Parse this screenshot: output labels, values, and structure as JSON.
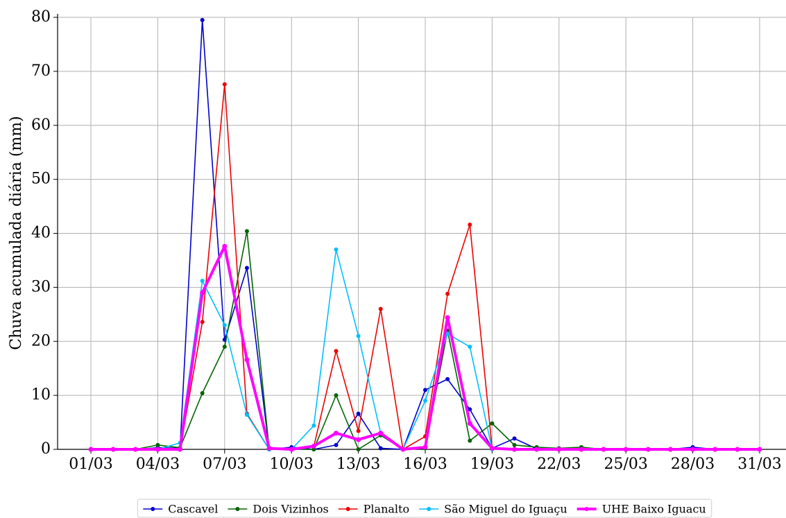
{
  "chart_data": {
    "type": "line",
    "ylabel": "Chuva acumulada diária (mm)",
    "categories": [
      "01/03",
      null,
      null,
      "04/03",
      null,
      null,
      "07/03",
      null,
      null,
      "10/03",
      null,
      null,
      "13/03",
      null,
      null,
      "16/03",
      null,
      null,
      "19/03",
      null,
      null,
      "22/03",
      null,
      null,
      "25/03",
      null,
      null,
      "28/03",
      null,
      null,
      "31/03"
    ],
    "series": [
      {
        "name": "Cascavel",
        "color": "#0000cd",
        "values": [
          0,
          0,
          0,
          0.3,
          0.2,
          79.5,
          20.3,
          33.6,
          0,
          0.4,
          0,
          0.8,
          6.6,
          0.2,
          0,
          11,
          13,
          7.4,
          0.2,
          2,
          0.1,
          0.1,
          0.1,
          0,
          0,
          0,
          0,
          0.4,
          0,
          0,
          0
        ]
      },
      {
        "name": "Dois Vizinhos",
        "color": "#006400",
        "values": [
          0,
          0,
          0,
          0.8,
          0.3,
          10.4,
          19,
          40.4,
          0,
          0,
          0,
          10,
          0,
          2.6,
          0,
          0.2,
          22,
          1.6,
          4.8,
          0.8,
          0.4,
          0.2,
          0.4,
          0,
          0,
          0,
          0,
          0,
          0,
          0,
          0
        ]
      },
      {
        "name": "Planalto",
        "color": "#ee0000",
        "values": [
          0,
          0,
          0,
          0,
          0,
          23.6,
          67.6,
          6.6,
          0,
          0,
          0.5,
          18.2,
          3.4,
          26,
          0,
          2.4,
          28.8,
          41.6,
          0.2,
          0,
          0,
          0,
          0,
          0,
          0,
          0,
          0,
          0,
          0,
          0,
          0
        ]
      },
      {
        "name": "São Miguel do Iguaçu",
        "color": "#00bfff",
        "values": [
          0,
          0,
          0,
          0,
          1.2,
          31.2,
          23,
          6.4,
          0,
          0,
          4.4,
          37,
          21,
          3,
          0,
          9,
          21.4,
          19,
          0,
          0,
          0,
          0,
          0,
          0,
          0,
          0,
          0,
          0,
          0,
          0,
          0
        ]
      },
      {
        "name": "UHE Baixo Iguacu",
        "color": "#ff00ff",
        "width": 4,
        "values": [
          0,
          0,
          0,
          0,
          0,
          29,
          37.6,
          16.6,
          0.2,
          0,
          0.6,
          3,
          1.8,
          3,
          0,
          0.4,
          24.4,
          4.8,
          0.2,
          0,
          0,
          0,
          0,
          0,
          0,
          0,
          0,
          0,
          0,
          0,
          0
        ]
      }
    ],
    "ylim": [
      0,
      80
    ],
    "yticks": [
      0,
      10,
      20,
      30,
      40,
      50,
      60,
      70,
      80
    ],
    "grid": true,
    "legend": "bottom"
  }
}
